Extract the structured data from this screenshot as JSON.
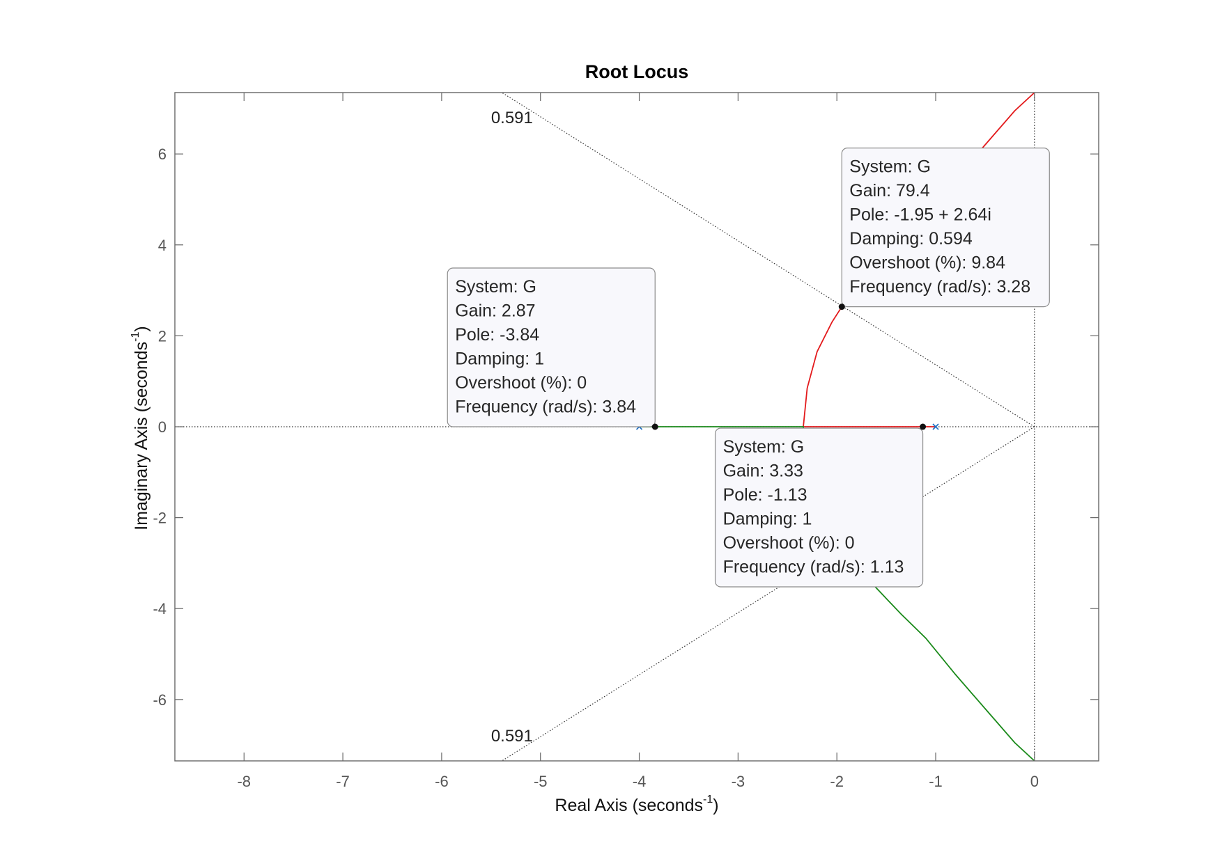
{
  "chart_data": {
    "type": "line",
    "title": "Root Locus",
    "xlabel": "Real Axis (seconds",
    "ylabel": "Imaginary Axis (seconds",
    "label_exponent": "-1",
    "xlim": [
      -8.7,
      0.65
    ],
    "ylim": [
      -7.35,
      7.35
    ],
    "xticks": [
      -8,
      -7,
      -6,
      -5,
      -4,
      -3,
      -2,
      -1,
      0
    ],
    "xtick_labels": [
      "-8",
      "-7",
      "-6",
      "-5",
      "-4",
      "-3",
      "-2",
      "-1",
      "0"
    ],
    "yticks": [
      -6,
      -4,
      -2,
      0,
      2,
      4,
      6
    ],
    "ytick_labels": [
      "-6",
      "-4",
      "-2",
      "0",
      "2",
      "4",
      "6"
    ],
    "grid": false,
    "poles": [
      [
        -4,
        0
      ],
      [
        -1,
        0
      ]
    ],
    "series": [
      {
        "color": "#e31a1c",
        "x": [
          -1,
          -1.2,
          -1.5,
          -1.8,
          -2.1,
          -2.34,
          -2.34,
          -2.3,
          -2.2,
          -2.05,
          -1.95,
          -1.8,
          -1.6,
          -1.35,
          -1.1,
          -0.8,
          -0.5,
          -0.2,
          0
        ],
        "y": [
          0,
          0,
          0,
          0,
          0,
          0,
          0,
          0.85,
          1.65,
          2.3,
          2.64,
          3.05,
          3.55,
          4.12,
          4.65,
          5.45,
          6.2,
          6.95,
          7.35
        ]
      },
      {
        "color": "#1a8a1a",
        "x": [
          -4,
          -3.8,
          -3.4,
          -3.0,
          -2.6,
          -2.34,
          -2.34,
          -2.3,
          -2.2,
          -2.05,
          -1.95,
          -1.8,
          -1.6,
          -1.35,
          -1.1,
          -0.8,
          -0.5,
          -0.2,
          0
        ],
        "y": [
          0,
          0,
          0,
          0,
          0,
          0,
          0,
          -0.85,
          -1.65,
          -2.3,
          -2.64,
          -3.05,
          -3.55,
          -4.12,
          -4.65,
          -5.45,
          -6.2,
          -6.95,
          -7.35
        ]
      }
    ],
    "damping_line": {
      "label": "0.591",
      "slope": 1.3636,
      "label_points": [
        [
          -5.5,
          6.8
        ],
        [
          -5.5,
          -6.8
        ]
      ]
    },
    "datatips": [
      {
        "point": [
          -1.95,
          2.64
        ],
        "lines": [
          "System: G",
          "Gain: 79.4",
          "Pole: -1.95 + 2.64i",
          "Damping: 0.594",
          "Overshoot (%): 9.84",
          "Frequency (rad/s): 3.28"
        ]
      },
      {
        "point": [
          -3.84,
          0
        ],
        "lines": [
          "System: G",
          "Gain: 2.87",
          "Pole: -3.84",
          "Damping: 1",
          "Overshoot (%): 0",
          "Frequency (rad/s): 3.84"
        ]
      },
      {
        "point": [
          -1.13,
          0
        ],
        "lines": [
          "System: G",
          "Gain: 3.33",
          "Pole: -1.13",
          "Damping: 1",
          "Overshoot (%): 0",
          "Frequency (rad/s): 1.13"
        ]
      }
    ]
  }
}
